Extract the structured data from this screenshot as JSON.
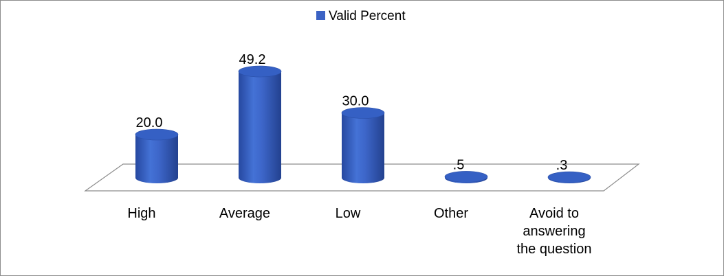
{
  "chart_data": {
    "type": "bar",
    "style": "3d-cylinder",
    "legend": {
      "position": "top",
      "entries": [
        "Valid Percent"
      ]
    },
    "categories": [
      "High",
      "Average",
      "Low",
      "Other",
      "Avoid to answering the question"
    ],
    "category_label_lines": [
      [
        "High"
      ],
      [
        "Average"
      ],
      [
        "Low"
      ],
      [
        "Other"
      ],
      [
        "Avoid to",
        "answering",
        "the question"
      ]
    ],
    "series": [
      {
        "name": "Valid Percent",
        "values": [
          20.0,
          49.2,
          30.0,
          0.5,
          0.3
        ],
        "data_labels": [
          "20.0",
          "49.2",
          "30.0",
          ".5",
          ".3"
        ],
        "color": "#3b62c4"
      }
    ],
    "ylim": [
      0,
      60
    ],
    "grid": false,
    "value_axis_visible": false
  }
}
